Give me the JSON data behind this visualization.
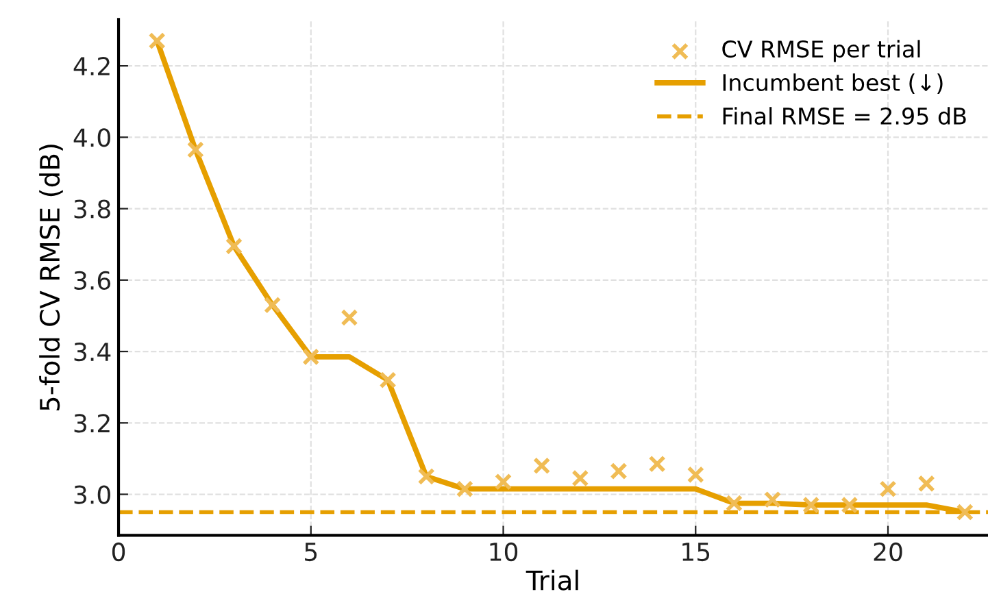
{
  "chart_data": {
    "type": "line",
    "xlabel": "Trial",
    "ylabel": "5-fold CV RMSE (dB)",
    "xlim": [
      0,
      22.6
    ],
    "xticks": [
      0,
      5,
      10,
      15,
      20
    ],
    "ylim": [
      2.885,
      4.33
    ],
    "yticks": [
      {
        "value": 3,
        "label": "3.0"
      },
      {
        "value": 3.2,
        "label": "3.2"
      },
      {
        "value": 3.4,
        "label": "3.4"
      },
      {
        "value": 3.6,
        "label": "3.6"
      },
      {
        "value": 3.8,
        "label": "3.8"
      },
      {
        "value": 4,
        "label": "4.0"
      },
      {
        "value": 4.2,
        "label": "4.2"
      }
    ],
    "grid": true,
    "legend": "top right",
    "series": [
      {
        "name": "CV RMSE per trial",
        "type": "scatter",
        "marker": "cross",
        "color": "#f0bc55",
        "x": [
          1,
          2,
          3,
          4,
          5,
          6,
          7,
          8,
          9,
          10,
          11,
          12,
          13,
          14,
          15,
          16,
          17,
          18,
          19,
          20,
          21,
          22
        ],
        "values": [
          4.27,
          3.965,
          3.695,
          3.53,
          3.385,
          3.495,
          3.32,
          3.05,
          3.015,
          3.035,
          3.08,
          3.045,
          3.065,
          3.085,
          3.055,
          2.975,
          2.985,
          2.97,
          2.97,
          3.015,
          3.03,
          2.95
        ]
      },
      {
        "name": "Incumbent best (↓)",
        "line_style": "solid",
        "color": "#e69f00",
        "x": [
          1,
          2,
          3,
          4,
          5,
          6,
          7,
          8,
          9,
          10,
          11,
          12,
          13,
          14,
          15,
          16,
          17,
          18,
          19,
          20,
          21,
          22
        ],
        "values": [
          4.27,
          3.965,
          3.695,
          3.53,
          3.385,
          3.385,
          3.32,
          3.05,
          3.015,
          3.015,
          3.015,
          3.015,
          3.015,
          3.015,
          3.015,
          2.975,
          2.975,
          2.97,
          2.97,
          2.97,
          2.97,
          2.95
        ]
      }
    ],
    "ref_lines": [
      {
        "axis": "y",
        "value": 2.95,
        "label": "Final RMSE = 2.95 dB",
        "color": "#e69f00",
        "line_style": "dashed"
      }
    ]
  }
}
